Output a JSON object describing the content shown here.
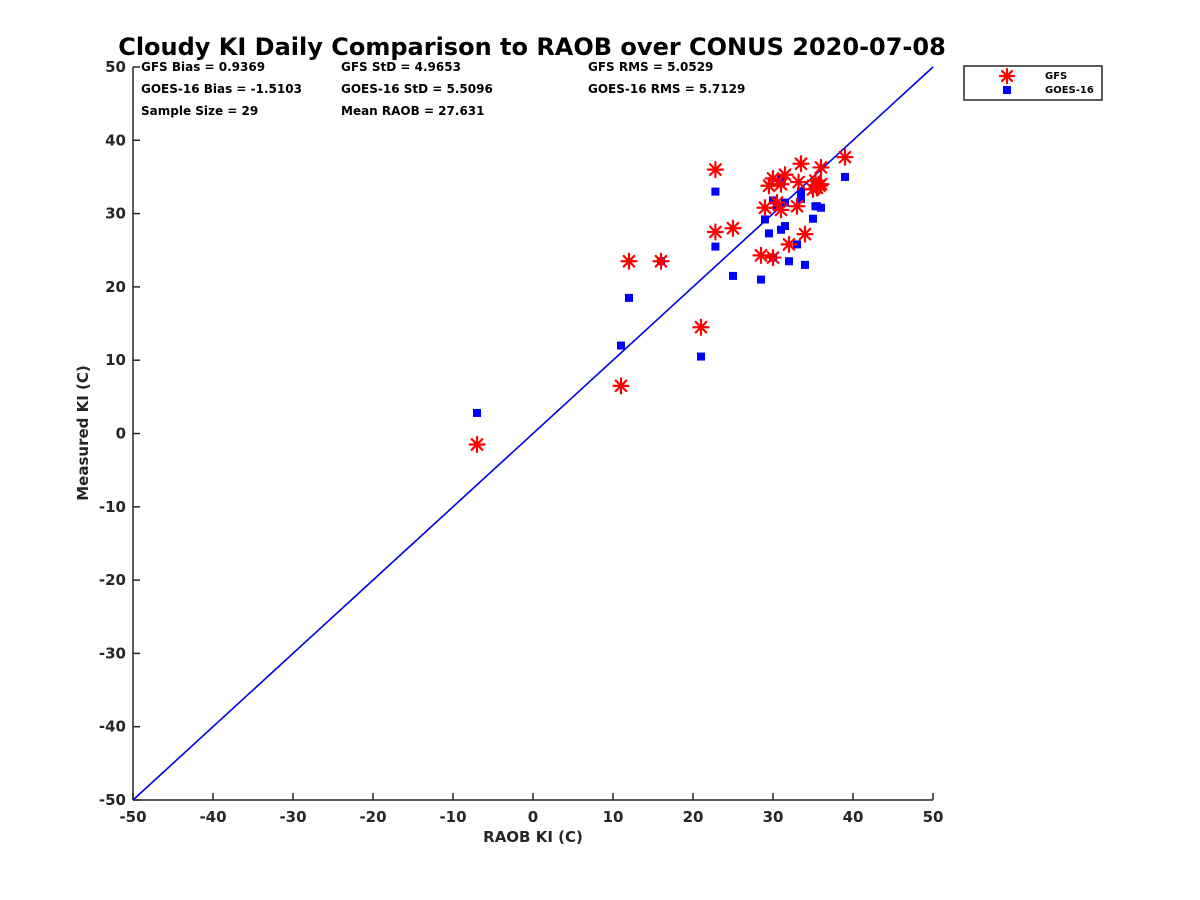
{
  "chart_data": {
    "type": "scatter",
    "title": "Cloudy KI Daily Comparison to RAOB over CONUS 2020-07-08",
    "xlabel": "RAOB KI (C)",
    "ylabel": "Measured KI (C)",
    "xlim": [
      -50,
      50
    ],
    "ylim": [
      -50,
      50
    ],
    "xticks": [
      "-50",
      "-40",
      "-30",
      "-20",
      "-10",
      "0",
      "10",
      "20",
      "30",
      "40",
      "50"
    ],
    "yticks": [
      "-50",
      "-40",
      "-30",
      "-20",
      "-10",
      "0",
      "10",
      "20",
      "30",
      "40",
      "50"
    ],
    "grid": false,
    "legend_position": "outside-top-right",
    "reference_line": {
      "type": "one-to-one",
      "color": "#0000e6"
    },
    "stats": [
      [
        "GFS Bias = 0.9369",
        "GFS StD = 4.9653",
        "GFS RMS = 5.0529"
      ],
      [
        "GOES-16 Bias = -1.5103",
        "GOES-16 StD = 5.5096",
        "GOES-16 RMS = 5.7129"
      ],
      [
        "Sample Size = 29",
        "Mean RAOB = 27.631",
        ""
      ]
    ],
    "series": [
      {
        "name": "GFS",
        "marker": "asterisk",
        "color": "#ff0000",
        "points": [
          [
            -7,
            -1.5
          ],
          [
            11,
            6.5
          ],
          [
            12,
            23.5
          ],
          [
            16,
            23.5
          ],
          [
            21,
            14.5
          ],
          [
            22.8,
            36
          ],
          [
            22.8,
            27.5
          ],
          [
            25,
            28
          ],
          [
            28.5,
            24.3
          ],
          [
            29,
            30.8
          ],
          [
            29.5,
            33.8
          ],
          [
            30,
            24
          ],
          [
            30,
            34.8
          ],
          [
            30.5,
            31.5
          ],
          [
            31,
            34
          ],
          [
            31,
            30.5
          ],
          [
            31.5,
            35.3
          ],
          [
            32,
            25.8
          ],
          [
            33,
            31
          ],
          [
            33.2,
            34.3
          ],
          [
            33.5,
            36.8
          ],
          [
            34,
            27.2
          ],
          [
            35,
            33.3
          ],
          [
            35.3,
            34.5
          ],
          [
            35.5,
            33.5
          ],
          [
            35.8,
            33.8
          ],
          [
            36,
            36.3
          ],
          [
            36,
            34
          ],
          [
            39,
            37.7
          ]
        ]
      },
      {
        "name": "GOES-16",
        "marker": "square",
        "color": "#0000ff",
        "points": [
          [
            -7,
            2.8
          ],
          [
            11,
            12
          ],
          [
            12,
            18.5
          ],
          [
            16,
            23.5
          ],
          [
            21,
            10.5
          ],
          [
            22.8,
            33
          ],
          [
            22.8,
            25.5
          ],
          [
            25,
            21.5
          ],
          [
            28.5,
            21
          ],
          [
            29,
            29.2
          ],
          [
            29.5,
            27.3
          ],
          [
            30,
            31.8
          ],
          [
            30,
            24
          ],
          [
            30.5,
            31
          ],
          [
            31,
            34.7
          ],
          [
            31,
            27.8
          ],
          [
            31.5,
            31.5
          ],
          [
            31.5,
            28.3
          ],
          [
            32,
            23.5
          ],
          [
            33,
            25.8
          ],
          [
            33.5,
            33
          ],
          [
            33.5,
            32
          ],
          [
            34,
            23
          ],
          [
            35,
            29.3
          ],
          [
            35.3,
            31
          ],
          [
            35.5,
            31
          ],
          [
            36,
            30.8
          ],
          [
            39,
            35
          ],
          [
            31,
            34.2
          ]
        ]
      }
    ]
  }
}
